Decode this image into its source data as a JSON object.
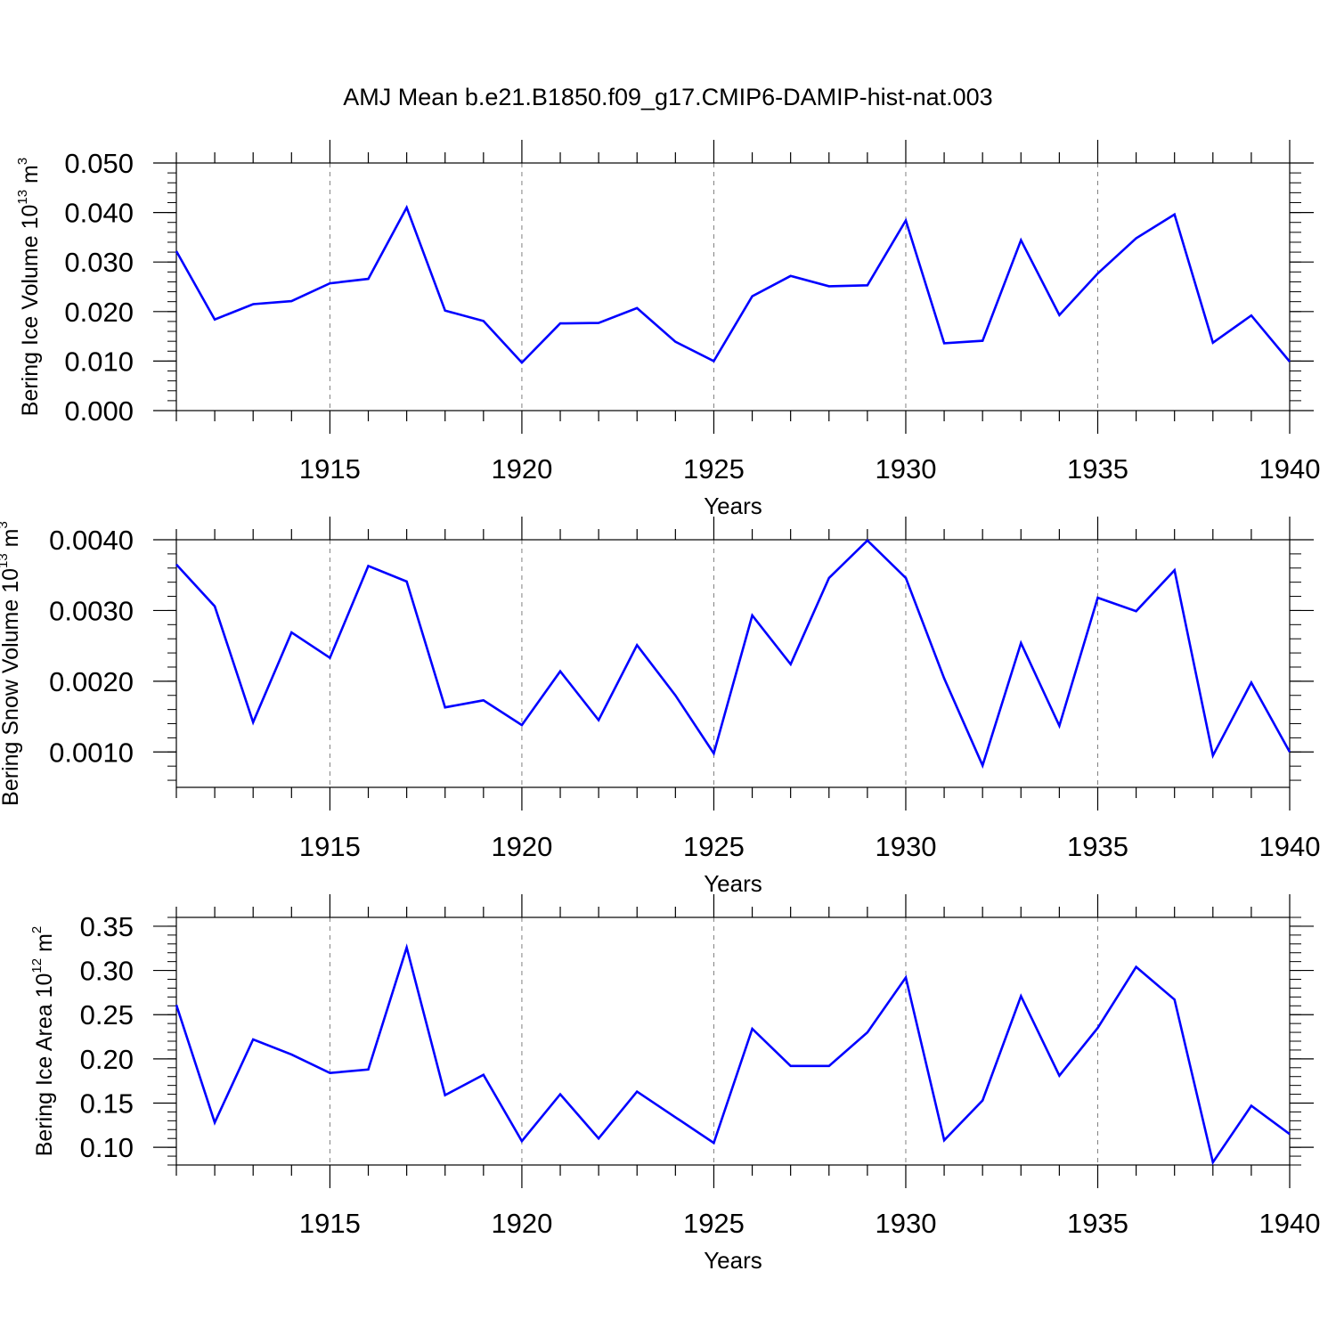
{
  "title": "AMJ Mean b.e21.B1850.f09_g17.CMIP6-DAMIP-hist-nat.003",
  "colors": {
    "line": "#0000ff",
    "axis": "#000000",
    "grid": "#808080"
  },
  "chart_data": [
    {
      "type": "line",
      "ylabel": "Bering Ice Volume",
      "ylabel_units_base": "10",
      "ylabel_units_exp": "13",
      "ylabel_units_unit": "m",
      "ylabel_units_unit_exp": "3",
      "xlabel": "Years",
      "xlim": [
        1911,
        1940
      ],
      "ylim": [
        0.0,
        0.05
      ],
      "yticks": [
        0.0,
        0.01,
        0.02,
        0.03,
        0.04,
        0.05
      ],
      "ytick_labels": [
        "0.000",
        "0.010",
        "0.020",
        "0.030",
        "0.040",
        "0.050"
      ],
      "xticks": [
        1915,
        1920,
        1925,
        1930,
        1935,
        1940
      ],
      "xtick_labels": [
        "1915",
        "1920",
        "1925",
        "1930",
        "1935",
        "1940"
      ],
      "x": [
        1911,
        1912,
        1913,
        1914,
        1915,
        1916,
        1917,
        1918,
        1919,
        1920,
        1921,
        1922,
        1923,
        1924,
        1925,
        1926,
        1927,
        1928,
        1929,
        1930,
        1931,
        1932,
        1933,
        1934,
        1935,
        1936,
        1937,
        1938,
        1939,
        1940
      ],
      "values": [
        0.0322,
        0.0184,
        0.0215,
        0.0221,
        0.0257,
        0.0266,
        0.041,
        0.0202,
        0.0181,
        0.0097,
        0.0176,
        0.0177,
        0.0207,
        0.0139,
        0.01,
        0.0231,
        0.0272,
        0.0251,
        0.0253,
        0.0384,
        0.0136,
        0.0141,
        0.0344,
        0.0193,
        0.0277,
        0.0348,
        0.0396,
        0.0137,
        0.0192,
        0.0099
      ]
    },
    {
      "type": "line",
      "ylabel": "Bering Snow Volume",
      "ylabel_units_base": "10",
      "ylabel_units_exp": "13",
      "ylabel_units_unit": "m",
      "ylabel_units_unit_exp": "3",
      "xlabel": "Years",
      "xlim": [
        1911,
        1940
      ],
      "ylim": [
        0.0005,
        0.004
      ],
      "yticks": [
        0.001,
        0.002,
        0.003,
        0.004
      ],
      "ytick_labels": [
        "0.0010",
        "0.0020",
        "0.0030",
        "0.0040"
      ],
      "xticks": [
        1915,
        1920,
        1925,
        1930,
        1935,
        1940
      ],
      "xtick_labels": [
        "1915",
        "1920",
        "1925",
        "1930",
        "1935",
        "1940"
      ],
      "x": [
        1911,
        1912,
        1913,
        1914,
        1915,
        1916,
        1917,
        1918,
        1919,
        1920,
        1921,
        1922,
        1923,
        1924,
        1925,
        1926,
        1927,
        1928,
        1929,
        1930,
        1931,
        1932,
        1933,
        1934,
        1935,
        1936,
        1937,
        1938,
        1939,
        1940
      ],
      "values": [
        0.00365,
        0.00306,
        0.00142,
        0.00269,
        0.00233,
        0.00363,
        0.00341,
        0.00163,
        0.00173,
        0.00138,
        0.00214,
        0.00145,
        0.00251,
        0.0018,
        0.00098,
        0.00293,
        0.00224,
        0.00346,
        0.00399,
        0.00346,
        0.00204,
        0.00081,
        0.00254,
        0.00137,
        0.00318,
        0.00299,
        0.00357,
        0.00095,
        0.00198,
        0.001
      ]
    },
    {
      "type": "line",
      "ylabel": "Bering Ice Area",
      "ylabel_units_base": "10",
      "ylabel_units_exp": "12",
      "ylabel_units_unit": "m",
      "ylabel_units_unit_exp": "2",
      "xlabel": "Years",
      "xlim": [
        1911,
        1940
      ],
      "ylim": [
        0.08,
        0.36
      ],
      "yticks": [
        0.1,
        0.15,
        0.2,
        0.25,
        0.3,
        0.35
      ],
      "ytick_labels": [
        "0.10",
        "0.15",
        "0.20",
        "0.25",
        "0.30",
        "0.35"
      ],
      "xticks": [
        1915,
        1920,
        1925,
        1930,
        1935,
        1940
      ],
      "xtick_labels": [
        "1915",
        "1920",
        "1925",
        "1930",
        "1935",
        "1940"
      ],
      "x": [
        1911,
        1912,
        1913,
        1914,
        1915,
        1916,
        1917,
        1918,
        1919,
        1920,
        1921,
        1922,
        1923,
        1924,
        1925,
        1926,
        1927,
        1928,
        1929,
        1930,
        1931,
        1932,
        1933,
        1934,
        1935,
        1936,
        1937,
        1938,
        1939,
        1940
      ],
      "values": [
        0.261,
        0.128,
        0.222,
        0.205,
        0.184,
        0.188,
        0.326,
        0.159,
        0.182,
        0.107,
        0.16,
        0.11,
        0.163,
        0.134,
        0.105,
        0.234,
        0.192,
        0.192,
        0.23,
        0.292,
        0.108,
        0.153,
        0.271,
        0.181,
        0.235,
        0.304,
        0.267,
        0.083,
        0.147,
        0.115
      ]
    }
  ]
}
